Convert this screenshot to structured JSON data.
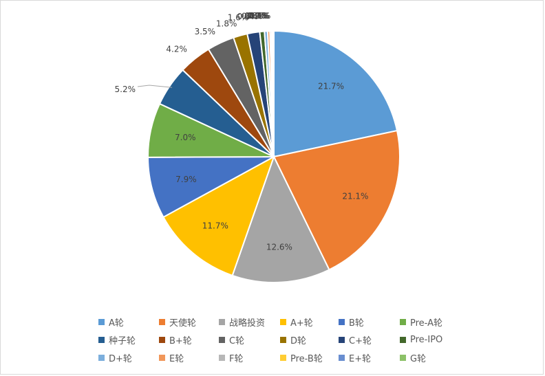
{
  "chart_data": {
    "type": "pie",
    "title": "",
    "slices": [
      {
        "name": "A轮",
        "value": 21.7,
        "label": "21.7%",
        "color": "#5B9BD5"
      },
      {
        "name": "天使轮",
        "value": 21.1,
        "label": "21.1%",
        "color": "#ED7D31"
      },
      {
        "name": "战略投资",
        "value": 12.6,
        "label": "12.6%",
        "color": "#A5A5A5"
      },
      {
        "name": "A+轮",
        "value": 11.7,
        "label": "11.7%",
        "color": "#FFC000"
      },
      {
        "name": "B轮",
        "value": 7.9,
        "label": "7.9%",
        "color": "#4472C4"
      },
      {
        "name": "Pre-A轮",
        "value": 7.0,
        "label": "7.0%",
        "color": "#70AD47"
      },
      {
        "name": "种子轮",
        "value": 5.2,
        "label": "5.2%",
        "color": "#255E91"
      },
      {
        "name": "B+轮",
        "value": 4.2,
        "label": "4.2%",
        "color": "#9E480E"
      },
      {
        "name": "C轮",
        "value": 3.5,
        "label": "3.5%",
        "color": "#636363"
      },
      {
        "name": "D轮",
        "value": 1.8,
        "label": "1.8%",
        "color": "#997300"
      },
      {
        "name": "C+轮",
        "value": 1.6,
        "label": "1.6%",
        "color": "#264478"
      },
      {
        "name": "Pre-IPO",
        "value": 0.6,
        "label": "0.6%",
        "color": "#43682B"
      },
      {
        "name": "D+轮",
        "value": 0.4,
        "label": "0.4%",
        "color": "#7CAFDD"
      },
      {
        "name": "E轮",
        "value": 0.3,
        "label": "0.3%",
        "color": "#F1975A"
      },
      {
        "name": "F轮",
        "value": 0.2,
        "label": "0.2%",
        "color": "#B7B7B7"
      },
      {
        "name": "Pre-B轮",
        "value": 0.1,
        "label": "0.1%",
        "color": "#FFCD33"
      },
      {
        "name": "E+轮",
        "value": 0.1,
        "label": "0.1%",
        "color": "#698ED0"
      },
      {
        "name": "G轮",
        "value": 0.1,
        "label": "0.1%",
        "color": "#8CC168"
      }
    ],
    "legend": "bottom",
    "start_angle": "12 o'clock",
    "direction": "clockwise"
  }
}
